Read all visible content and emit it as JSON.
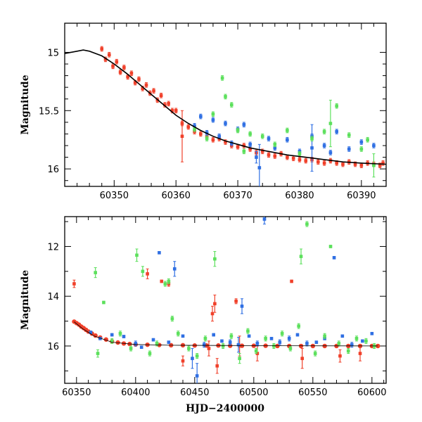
{
  "colors": {
    "red": "#f0402a",
    "blue": "#2f6fe3",
    "green": "#5ce05c",
    "model": "#000000",
    "axes": "#000000"
  },
  "chart_data": [
    {
      "type": "scatter",
      "title": "",
      "xlabel": "",
      "ylabel": "Magnitude",
      "xlim": [
        60342,
        60394
      ],
      "ylim": [
        16.15,
        14.75
      ],
      "y_inverted": true,
      "xticks": [
        60350,
        60360,
        60370,
        60380,
        60390
      ],
      "xtick_labels": [
        "60350",
        "60360",
        "60370",
        "60380",
        "60390"
      ],
      "yticks": [
        15,
        15.5,
        16
      ],
      "ytick_labels": [
        "15",
        "15.5",
        "16"
      ],
      "model_curve": {
        "name": "",
        "x": [
          60342,
          60344,
          60345,
          60346,
          60348,
          60350,
          60352,
          60354,
          60356,
          60358,
          60360,
          60362,
          60364,
          60366,
          60368,
          60370,
          60372,
          60375,
          60378,
          60381,
          60384,
          60387,
          60390,
          60394
        ],
        "y": [
          15.01,
          14.99,
          14.98,
          14.99,
          15.03,
          15.1,
          15.18,
          15.27,
          15.36,
          15.45,
          15.54,
          15.61,
          15.67,
          15.72,
          15.76,
          15.79,
          15.82,
          15.85,
          15.88,
          15.9,
          15.92,
          15.94,
          15.95,
          15.96
        ]
      },
      "series": [
        {
          "color": "red",
          "x": [
            60348,
            60348.6,
            60349.2,
            60349.8,
            60350.4,
            60351,
            60351.6,
            60352.2,
            60352.8,
            60353.4,
            60354,
            60354.6,
            60355.2,
            60355.8,
            60356.4,
            60357,
            60357.6,
            60358.2,
            60358.8,
            60359.4,
            60360,
            60361,
            60362,
            60363,
            60364,
            60365,
            60366,
            60367,
            60368,
            60369,
            60370,
            60371,
            60372,
            60373,
            60374,
            60375,
            60376,
            60377,
            60378,
            60379,
            60380,
            60381,
            60382,
            60383,
            60384,
            60385,
            60386,
            60387,
            60388,
            60389,
            60390,
            60391,
            60392,
            60393,
            60393.5
          ],
          "y": [
            14.97,
            15.06,
            15.02,
            15.12,
            15.08,
            15.17,
            15.13,
            15.21,
            15.18,
            15.26,
            15.23,
            15.31,
            15.28,
            15.35,
            15.33,
            15.41,
            15.37,
            15.45,
            15.44,
            15.5,
            15.5,
            15.61,
            15.64,
            15.68,
            15.7,
            15.72,
            15.75,
            15.74,
            15.77,
            15.8,
            15.81,
            15.8,
            15.83,
            15.86,
            15.85,
            15.88,
            15.89,
            15.87,
            15.9,
            15.91,
            15.92,
            15.93,
            15.92,
            15.94,
            15.95,
            15.93,
            15.95,
            15.96,
            15.94,
            15.96,
            15.97,
            15.95,
            15.96,
            15.97,
            15.95
          ],
          "err": [
            0.02,
            0.02,
            0.02,
            0.02,
            0.02,
            0.02,
            0.02,
            0.02,
            0.02,
            0.02,
            0.02,
            0.02,
            0.02,
            0.02,
            0.02,
            0.02,
            0.02,
            0.02,
            0.02,
            0.02,
            0.02,
            0.02,
            0.02,
            0.02,
            0.02,
            0.02,
            0.02,
            0.02,
            0.02,
            0.02,
            0.02,
            0.02,
            0.02,
            0.02,
            0.02,
            0.02,
            0.02,
            0.02,
            0.02,
            0.02,
            0.02,
            0.02,
            0.02,
            0.02,
            0.02,
            0.02,
            0.02,
            0.02,
            0.02,
            0.02,
            0.02,
            0.02,
            0.02,
            0.02,
            0.02
          ]
        },
        {
          "color": "red",
          "x": [
            60361
          ],
          "y": [
            15.72
          ],
          "err": [
            0.22
          ]
        },
        {
          "color": "blue",
          "x": [
            60363,
            60364,
            60365,
            60366,
            60367,
            60368,
            60369,
            60370,
            60371,
            60372,
            60373,
            60373.5,
            60375,
            60376,
            60378,
            60380,
            60382,
            60384,
            60385,
            60386,
            60388,
            60390,
            60392
          ],
          "y": [
            15.63,
            15.55,
            15.69,
            15.58,
            15.72,
            15.61,
            15.78,
            15.66,
            15.62,
            15.79,
            15.9,
            15.99,
            15.74,
            15.82,
            15.75,
            15.85,
            15.72,
            15.8,
            15.86,
            15.68,
            15.83,
            15.77,
            15.8
          ],
          "err": [
            0.02,
            0.02,
            0.02,
            0.02,
            0.02,
            0.02,
            0.02,
            0.02,
            0.02,
            0.02,
            0.05,
            0.2,
            0.02,
            0.02,
            0.02,
            0.02,
            0.02,
            0.02,
            0.02,
            0.02,
            0.02,
            0.02,
            0.02
          ]
        },
        {
          "color": "blue",
          "x": [
            60382
          ],
          "y": [
            15.82
          ],
          "err": [
            0.2
          ]
        },
        {
          "color": "green",
          "x": [
            60363,
            60365,
            60366,
            60367.5,
            60368,
            60369,
            60370,
            60371,
            60372,
            60374,
            60376,
            60378,
            60380,
            60382,
            60384,
            60385,
            60386,
            60388,
            60390,
            60391,
            60392
          ],
          "y": [
            15.66,
            15.74,
            15.53,
            15.22,
            15.38,
            15.45,
            15.67,
            15.85,
            15.7,
            15.72,
            15.79,
            15.67,
            15.87,
            15.74,
            15.68,
            15.61,
            15.46,
            15.71,
            15.83,
            15.75,
            15.97
          ],
          "err": [
            0.02,
            0.02,
            0.02,
            0.02,
            0.02,
            0.02,
            0.02,
            0.02,
            0.02,
            0.02,
            0.02,
            0.02,
            0.02,
            0.02,
            0.02,
            0.2,
            0.02,
            0.02,
            0.02,
            0.02,
            0.1
          ]
        }
      ]
    },
    {
      "type": "scatter",
      "title": "",
      "xlabel": "HJD−2400000",
      "ylabel": "Magnitude",
      "xlim": [
        60340,
        60612
      ],
      "ylim": [
        17.5,
        10.8
      ],
      "y_inverted": true,
      "xticks": [
        60350,
        60400,
        60450,
        60500,
        60550,
        60600
      ],
      "xtick_labels": [
        "60350",
        "60400",
        "60450",
        "60500",
        "60550",
        "60600"
      ],
      "yticks": [
        12,
        14,
        16
      ],
      "ytick_labels": [
        "12",
        "14",
        "16"
      ],
      "model_curve": {
        "name": "",
        "x": [
          60348,
          60355,
          60365,
          60380,
          60400,
          60430,
          60470,
          60530,
          60605
        ],
        "y": [
          15.03,
          15.3,
          15.6,
          15.85,
          15.94,
          15.97,
          15.98,
          15.99,
          16.0
        ]
      },
      "series": [
        {
          "color": "red",
          "x": [
            60348,
            60350,
            60352,
            60354,
            60356,
            60358,
            60360,
            60363,
            60366,
            60370,
            60375,
            60380,
            60385,
            60390,
            60395,
            60400,
            60410,
            60420,
            60430,
            60440,
            60450,
            60460,
            60470,
            60480,
            60490,
            60500,
            60510,
            60520,
            60530,
            60540,
            60550,
            60560,
            60570,
            60580,
            60590,
            60600,
            60605
          ],
          "y": [
            15.02,
            15.08,
            15.14,
            15.22,
            15.28,
            15.35,
            15.42,
            15.5,
            15.58,
            15.66,
            15.74,
            15.81,
            15.86,
            15.9,
            15.92,
            15.94,
            15.95,
            15.96,
            15.97,
            15.97,
            15.98,
            15.98,
            15.98,
            15.99,
            15.99,
            15.99,
            15.99,
            16.0,
            16.0,
            16.0,
            16.0,
            16.0,
            16.0,
            16.0,
            16.0,
            16.0,
            16.0
          ],
          "err": [
            0.05,
            0.05,
            0.05,
            0.05,
            0.05,
            0.05,
            0.05,
            0.05,
            0.05,
            0.05,
            0.05,
            0.05,
            0.05,
            0.05,
            0.05,
            0.05,
            0.05,
            0.05,
            0.05,
            0.05,
            0.05,
            0.05,
            0.05,
            0.05,
            0.05,
            0.05,
            0.05,
            0.05,
            0.05,
            0.05,
            0.05,
            0.05,
            0.05,
            0.05,
            0.05,
            0.05,
            0.05
          ]
        },
        {
          "color": "red",
          "x": [
            60348,
            60410,
            60422,
            60428,
            60440,
            60462,
            60465,
            60467,
            60469,
            60485,
            60488,
            60503,
            60532,
            60541,
            60573,
            60590
          ],
          "y": [
            13.5,
            13.1,
            13.4,
            13.5,
            16.6,
            16.1,
            14.7,
            14.3,
            16.8,
            14.2,
            16.0,
            16.3,
            13.4,
            16.5,
            16.4,
            16.3
          ],
          "err": [
            0.15,
            0.2,
            0.05,
            0.1,
            0.2,
            0.3,
            0.3,
            0.35,
            0.3,
            0.1,
            0.4,
            0.3,
            0.05,
            0.4,
            0.25,
            0.3
          ]
        },
        {
          "color": "blue",
          "x": [
            60362,
            60370,
            60380,
            60390,
            60400,
            60405,
            60415,
            60420,
            60428,
            60433,
            60440,
            60448,
            60452,
            60458,
            60466,
            60473,
            60480,
            60487,
            60490,
            60496,
            60503,
            60509,
            60515,
            60522,
            60530,
            60537,
            60545,
            60553,
            60560,
            60568,
            60575,
            60583,
            60592,
            60600
          ],
          "y": [
            15.45,
            15.7,
            15.55,
            15.62,
            15.9,
            16.05,
            15.75,
            12.25,
            15.85,
            12.9,
            15.6,
            16.5,
            17.2,
            15.95,
            15.55,
            15.8,
            15.85,
            15.95,
            14.4,
            15.6,
            15.9,
            10.9,
            15.7,
            15.85,
            15.7,
            15.55,
            15.9,
            15.85,
            15.7,
            12.45,
            15.6,
            15.95,
            15.8,
            15.5
          ],
          "err": [
            0.05,
            0.05,
            0.05,
            0.05,
            0.1,
            0.05,
            0.05,
            0.05,
            0.05,
            0.3,
            0.05,
            0.4,
            0.5,
            0.1,
            0.05,
            0.05,
            0.1,
            0.3,
            0.3,
            0.05,
            0.1,
            0.2,
            0.05,
            0.1,
            0.1,
            0.05,
            0.1,
            0.05,
            0.05,
            0.05,
            0.05,
            0.1,
            0.05,
            0.05
          ]
        },
        {
          "color": "green",
          "x": [
            60366,
            60368,
            60373,
            60380,
            60387,
            60396,
            60401,
            60406,
            60412,
            60418,
            60425,
            60428,
            60431,
            60436,
            60445,
            60452,
            60459,
            60467,
            60474,
            60481,
            60488,
            60495,
            60502,
            60510,
            60517,
            60524,
            60531,
            60538,
            60540,
            60545,
            60552,
            60560,
            60565,
            60572,
            60580,
            60587,
            60595,
            60602
          ],
          "y": [
            13.05,
            16.3,
            14.25,
            15.8,
            15.5,
            16.1,
            12.35,
            13.0,
            16.3,
            15.9,
            13.5,
            13.4,
            14.9,
            15.5,
            16.1,
            16.4,
            15.7,
            12.5,
            16.0,
            15.6,
            16.5,
            15.4,
            16.2,
            15.7,
            16.0,
            15.5,
            16.1,
            15.2,
            12.4,
            11.1,
            16.3,
            15.6,
            12.0,
            15.9,
            16.2,
            15.7,
            15.8,
            16.0
          ],
          "err": [
            0.2,
            0.15,
            0.05,
            0.1,
            0.1,
            0.1,
            0.25,
            0.2,
            0.1,
            0.1,
            0.1,
            0.1,
            0.1,
            0.1,
            0.1,
            0.1,
            0.1,
            0.3,
            0.1,
            0.1,
            0.2,
            0.1,
            0.1,
            0.1,
            0.1,
            0.1,
            0.1,
            0.1,
            0.3,
            0.1,
            0.1,
            0.1,
            0.05,
            0.1,
            0.1,
            0.1,
            0.1,
            0.1
          ]
        }
      ]
    }
  ]
}
